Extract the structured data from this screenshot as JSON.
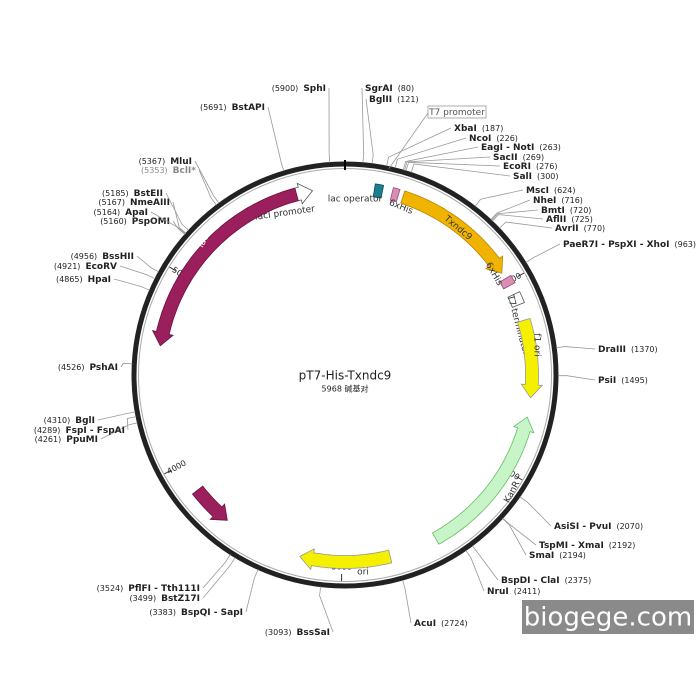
{
  "plasmid": {
    "name": "pT7-His-Txndc9",
    "size": {
      "value": 5968,
      "label": "5968 碱基对"
    },
    "scale_ticks": [
      1000,
      2000,
      3000,
      4000,
      5000
    ],
    "callouts": [
      "T7 promoter"
    ],
    "features": [
      "lacI promoter",
      "lac operator",
      "6xHis",
      "Txndc9",
      "6xHis",
      "T7 terminator",
      "f1 ori",
      "KanR",
      "ori",
      "rop",
      "lacI"
    ],
    "sites": [
      {
        "name": "SphI",
        "position": {
          "value": 5900,
          "label": "(5900)"
        }
      },
      {
        "name": "SgrAI",
        "position": {
          "value": 80,
          "label": "(80)"
        }
      },
      {
        "name": "BglII",
        "position": {
          "value": 121,
          "label": "(121)"
        }
      },
      {
        "name": "XbaI",
        "position": {
          "value": 187,
          "label": "(187)"
        }
      },
      {
        "name": "NcoI",
        "position": {
          "value": 226,
          "label": "(226)"
        }
      },
      {
        "name": "EagI - NotI",
        "position": {
          "value": 263,
          "label": "(263)"
        }
      },
      {
        "name": "SacII",
        "position": {
          "value": 269,
          "label": "(269)"
        }
      },
      {
        "name": "EcoRI",
        "position": {
          "value": 276,
          "label": "(276)"
        }
      },
      {
        "name": "SalI",
        "position": {
          "value": 300,
          "label": "(300)"
        }
      },
      {
        "name": "MscI",
        "position": {
          "value": 624,
          "label": "(624)"
        }
      },
      {
        "name": "NheI",
        "position": {
          "value": 716,
          "label": "(716)"
        }
      },
      {
        "name": "BmtI",
        "position": {
          "value": 720,
          "label": "(720)"
        }
      },
      {
        "name": "AflII",
        "position": {
          "value": 725,
          "label": "(725)"
        }
      },
      {
        "name": "AvrII",
        "position": {
          "value": 770,
          "label": "(770)"
        }
      },
      {
        "name": "PaeR7I - PspXI - XhoI",
        "position": {
          "value": 963,
          "label": "(963)"
        }
      },
      {
        "name": "DraIII",
        "position": {
          "value": 1370,
          "label": "(1370)"
        }
      },
      {
        "name": "PsiI",
        "position": {
          "value": 1495,
          "label": "(1495)"
        }
      },
      {
        "name": "AsiSI - PvuI",
        "position": {
          "value": 2070,
          "label": "(2070)"
        }
      },
      {
        "name": "TspMI - XmaI",
        "position": {
          "value": 2192,
          "label": "(2192)"
        }
      },
      {
        "name": "SmaI",
        "position": {
          "value": 2194,
          "label": "(2194)"
        }
      },
      {
        "name": "BspDI - ClaI",
        "position": {
          "value": 2375,
          "label": "(2375)"
        }
      },
      {
        "name": "NruI",
        "position": {
          "value": 2411,
          "label": "(2411)"
        }
      },
      {
        "name": "AcuI",
        "position": {
          "value": 2724,
          "label": "(2724)"
        }
      },
      {
        "name": "BssSaI",
        "position": {
          "value": 3093,
          "label": "(3093)"
        }
      },
      {
        "name": "BspQI - SapI",
        "position": {
          "value": 3383,
          "label": "(3383)"
        }
      },
      {
        "name": "BstZ17I",
        "position": {
          "value": 3499,
          "label": "(3499)"
        }
      },
      {
        "name": "PflFI - Tth111I",
        "position": {
          "value": 3524,
          "label": "(3524)"
        }
      },
      {
        "name": "PpuMI",
        "position": {
          "value": 4261,
          "label": "(4261)"
        }
      },
      {
        "name": "FspI - FspAI",
        "position": {
          "value": 4289,
          "label": "(4289)"
        }
      },
      {
        "name": "BglI",
        "position": {
          "value": 4310,
          "label": "(4310)"
        }
      },
      {
        "name": "PshAI",
        "position": {
          "value": 4526,
          "label": "(4526)"
        }
      },
      {
        "name": "HpaI",
        "position": {
          "value": 4865,
          "label": "(4865)"
        }
      },
      {
        "name": "EcoRV",
        "position": {
          "value": 4921,
          "label": "(4921)"
        }
      },
      {
        "name": "BssHII",
        "position": {
          "value": 4956,
          "label": "(4956)"
        }
      },
      {
        "name": "PspOMI",
        "position": {
          "value": 5160,
          "label": "(5160)"
        }
      },
      {
        "name": "ApaI",
        "position": {
          "value": 5164,
          "label": "(5164)"
        }
      },
      {
        "name": "NmeAIII",
        "position": {
          "value": 5167,
          "label": "(5167)"
        }
      },
      {
        "name": "BstEII",
        "position": {
          "value": 5185,
          "label": "(5185)"
        }
      },
      {
        "name": "BclI*",
        "position": {
          "value": 5353,
          "label": "(5353)"
        }
      },
      {
        "name": "MluI",
        "position": {
          "value": 5367,
          "label": "(5367)"
        }
      },
      {
        "name": "BstAPI",
        "position": {
          "value": 5691,
          "label": "(5691)"
        }
      }
    ]
  },
  "watermark": "biogege.com"
}
